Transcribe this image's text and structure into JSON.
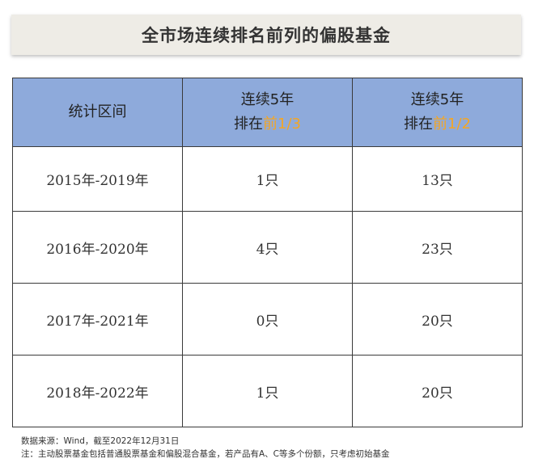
{
  "title": "全市场连续排名前列的偏股基金",
  "header": {
    "col1": "统计区间",
    "col2": {
      "line1": "连续5年",
      "prefix": "排在",
      "highlight": "前1/3"
    },
    "col3": {
      "line1": "连续5年",
      "prefix": "排在",
      "highlight": "前1/2"
    }
  },
  "rows": [
    {
      "period": "2015年-2019年",
      "top_third": "1只",
      "top_half": "13只"
    },
    {
      "period": "2016年-2020年",
      "top_third": "4只",
      "top_half": "23只"
    },
    {
      "period": "2017年-2021年",
      "top_third": "0只",
      "top_half": "20只"
    },
    {
      "period": "2018年-2022年",
      "top_third": "1只",
      "top_half": "20只"
    }
  ],
  "footnotes": {
    "source": "数据来源：Wind，截至2022年12月31日",
    "note": "注：主动股票基金包括普通股票基金和偏股混合基金，若产品有A、C等多个份额，只考虑初始基金"
  },
  "colors": {
    "header_bg": "#8eaadb",
    "highlight": "#f5a623",
    "emphasis_red": "#c00000",
    "title_bg": "#eeece6"
  }
}
